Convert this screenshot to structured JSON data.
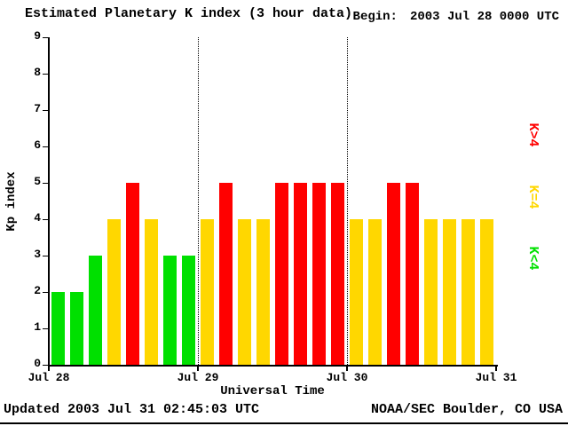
{
  "header": {
    "title": "Estimated Planetary K index (3 hour data)",
    "begin_label": "Begin:",
    "begin_value": "2003 Jul 28 0000 UTC"
  },
  "footer": {
    "updated": "Updated 2003 Jul 31 02:45:03 UTC",
    "source": "NOAA/SEC Boulder, CO USA"
  },
  "chart_data": {
    "type": "bar",
    "title": "Estimated Planetary K index (3 hour data)",
    "begin": "2003 Jul 28 0000 UTC",
    "xlabel": "Universal Time",
    "ylabel": "Kp index",
    "ylim": [
      0,
      9
    ],
    "y_ticks": [
      0,
      1,
      2,
      3,
      4,
      5,
      6,
      7,
      8,
      9
    ],
    "x_tick_labels": [
      "Jul 28",
      "Jul 29",
      "Jul 30",
      "Jul 31"
    ],
    "interval_hours": 3,
    "bars_per_day": 8,
    "values": [
      2,
      2,
      3,
      4,
      5,
      4,
      3,
      3,
      4,
      5,
      4,
      4,
      5,
      5,
      5,
      5,
      4,
      4,
      5,
      5,
      4,
      4,
      4,
      4
    ],
    "colors": {
      "k_lt_4": "#00e000",
      "k_eq_4": "#ffd700",
      "k_gt_4": "#ff0000"
    },
    "legend": [
      {
        "label": "K>4",
        "color_key": "k_gt_4"
      },
      {
        "label": "K=4",
        "color_key": "k_eq_4"
      },
      {
        "label": "K<4",
        "color_key": "k_lt_4"
      }
    ],
    "grid": "dotted vertical lines at interior day boundaries",
    "legend_position": "right, rotated 90deg"
  }
}
